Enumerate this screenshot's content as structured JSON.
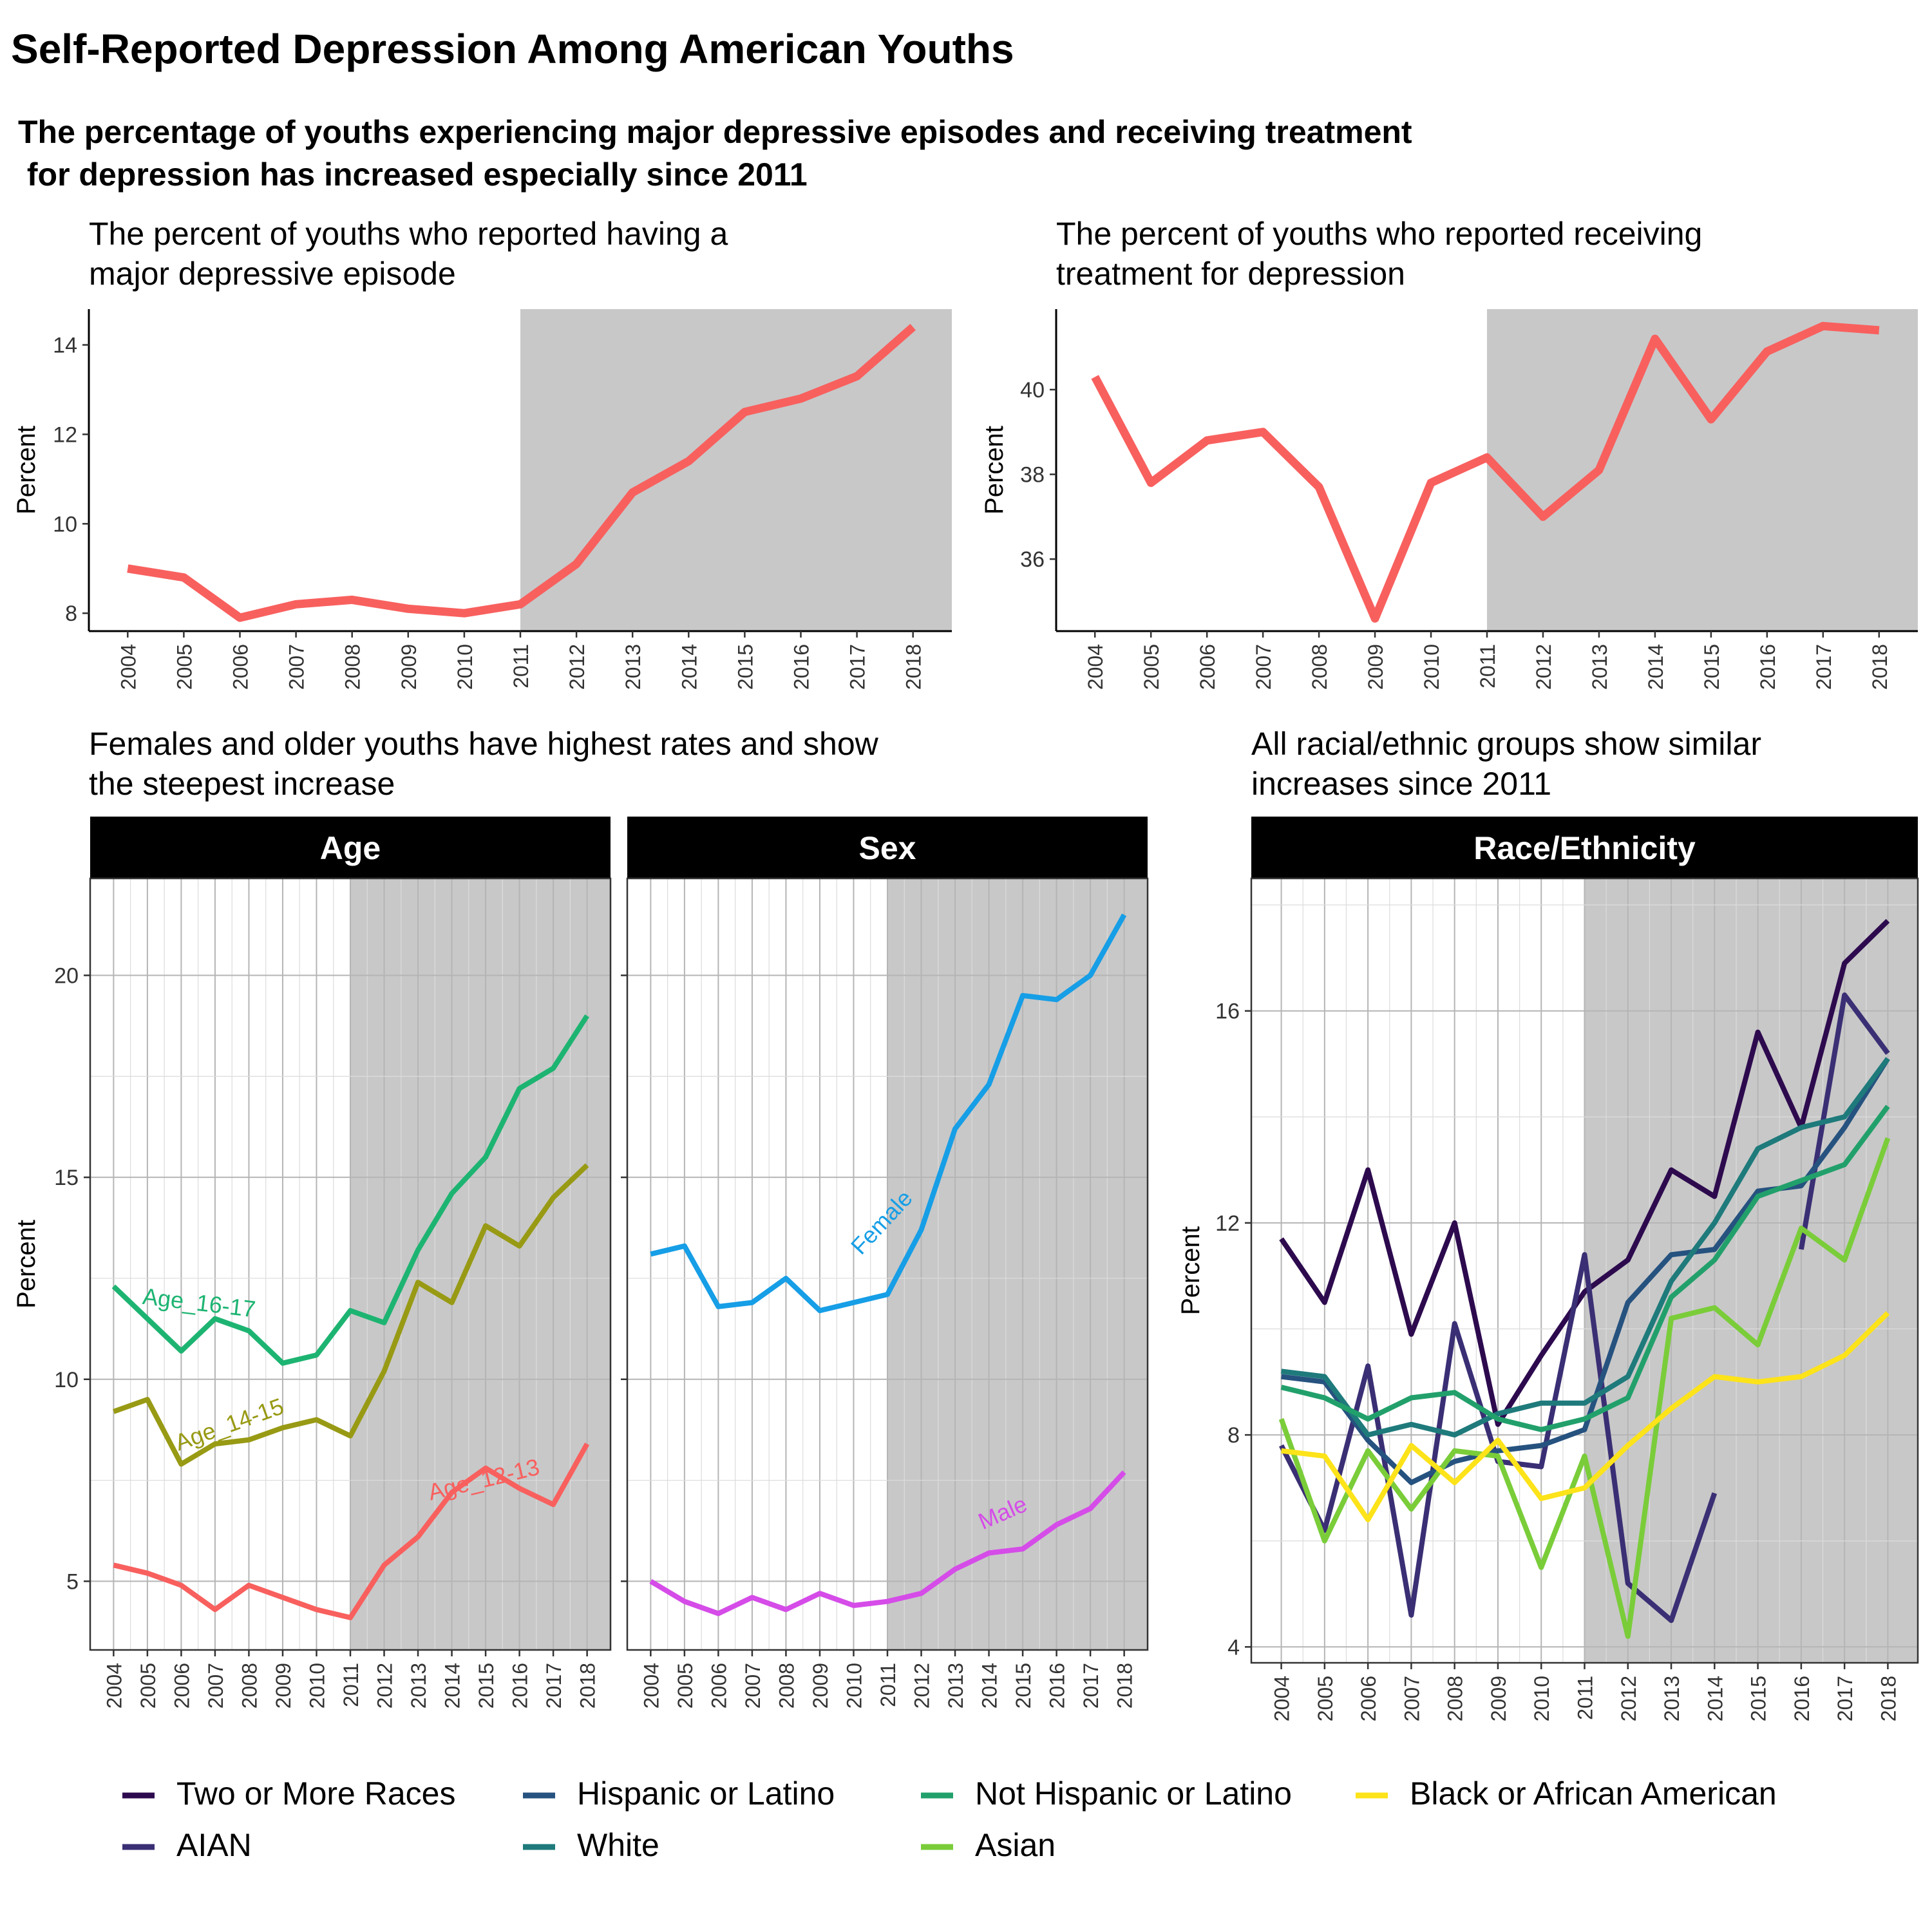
{
  "title": "Self-Reported Depression Among American Youths",
  "subtitle_lines": [
    "The percentage of youths experiencing major depressive episodes and receiving treatment",
    " for depression has increased especially since 2011"
  ],
  "colors": {
    "line_main": "#F8605E",
    "shade": "#C8C8C8",
    "age_12_13": "#F8605E",
    "age_14_15": "#989A14",
    "age_16_17": "#1DB472",
    "female": "#169EE6",
    "male": "#D54CE8"
  },
  "chart_data": [
    {
      "id": "mde",
      "type": "line",
      "title_lines": [
        "The percent of youths who reported having a",
        "major depressive episode"
      ],
      "ylabel": "Percent",
      "xlabel": "",
      "x": [
        2004,
        2005,
        2006,
        2007,
        2008,
        2009,
        2010,
        2011,
        2012,
        2013,
        2014,
        2015,
        2016,
        2017,
        2018
      ],
      "series": [
        {
          "values": [
            9.0,
            8.8,
            7.9,
            8.2,
            8.3,
            8.1,
            8.0,
            8.2,
            9.1,
            10.7,
            11.4,
            12.5,
            12.8,
            13.3,
            14.4
          ]
        }
      ],
      "ylim": [
        7.6,
        14.8
      ],
      "yticks": [
        8,
        10,
        12,
        14
      ],
      "shade_from": 2011,
      "grid": false
    },
    {
      "id": "treatment",
      "type": "line",
      "title_lines": [
        "The percent of youths who reported receiving",
        "treatment for depression"
      ],
      "ylabel": "Percent",
      "xlabel": "",
      "x": [
        2004,
        2005,
        2006,
        2007,
        2008,
        2009,
        2010,
        2011,
        2012,
        2013,
        2014,
        2015,
        2016,
        2017,
        2018
      ],
      "series": [
        {
          "values": [
            40.3,
            37.8,
            38.8,
            39.0,
            37.7,
            34.6,
            37.8,
            38.4,
            37.0,
            38.1,
            41.2,
            39.3,
            40.9,
            41.5,
            41.4
          ]
        }
      ],
      "ylim": [
        34.3,
        41.9
      ],
      "yticks": [
        36,
        38,
        40
      ],
      "shade_from": 2011,
      "grid": false
    },
    {
      "id": "age",
      "type": "line",
      "panel_title_lines": [
        "Females and older youths have highest rates and show",
        "the steepest increase"
      ],
      "strip": "Age",
      "ylabel": "Percent",
      "xlabel": "",
      "x": [
        2004,
        2005,
        2006,
        2007,
        2008,
        2009,
        2010,
        2011,
        2012,
        2013,
        2014,
        2015,
        2016,
        2017,
        2018
      ],
      "series": [
        {
          "label": "Age_12-13",
          "values": [
            5.4,
            5.2,
            4.9,
            4.3,
            4.9,
            4.6,
            4.3,
            4.1,
            5.4,
            6.1,
            7.2,
            7.8,
            7.3,
            6.9,
            8.4
          ]
        },
        {
          "label": "Age_14-15",
          "values": [
            9.2,
            9.5,
            7.9,
            8.4,
            8.5,
            8.8,
            9.0,
            8.6,
            10.2,
            12.4,
            11.9,
            13.8,
            13.3,
            14.5,
            15.3
          ]
        },
        {
          "label": "Age_16-17",
          "values": [
            12.3,
            11.5,
            10.7,
            11.5,
            11.2,
            10.4,
            10.6,
            11.7,
            11.4,
            13.2,
            14.6,
            15.5,
            17.2,
            17.7,
            19.0
          ]
        }
      ],
      "ylim": [
        3.3,
        22.4
      ],
      "yticks": [
        5,
        10,
        15,
        20
      ],
      "shade_from": 2011,
      "grid": true
    },
    {
      "id": "sex",
      "type": "line",
      "strip": "Sex",
      "xlabel": "",
      "x": [
        2004,
        2005,
        2006,
        2007,
        2008,
        2009,
        2010,
        2011,
        2012,
        2013,
        2014,
        2015,
        2016,
        2017,
        2018
      ],
      "series": [
        {
          "label": "Female",
          "values": [
            13.1,
            13.3,
            11.8,
            11.9,
            12.5,
            11.7,
            11.9,
            12.1,
            13.7,
            16.2,
            17.3,
            19.5,
            19.4,
            20.0,
            21.5
          ]
        },
        {
          "label": "Male",
          "values": [
            5.0,
            4.5,
            4.2,
            4.6,
            4.3,
            4.7,
            4.4,
            4.5,
            4.7,
            5.3,
            5.7,
            5.8,
            6.4,
            6.8,
            7.7
          ]
        }
      ],
      "ylim": [
        3.3,
        22.4
      ],
      "yticks": [
        5,
        10,
        15,
        20
      ],
      "shade_from": 2011,
      "grid": true
    },
    {
      "id": "race",
      "type": "line",
      "panel_title_lines": [
        "All racial/ethnic groups show similar",
        "increases since 2011"
      ],
      "strip": "Race/Ethnicity",
      "ylabel": "Percent",
      "xlabel": "",
      "x": [
        2004,
        2005,
        2006,
        2007,
        2008,
        2009,
        2010,
        2011,
        2012,
        2013,
        2014,
        2015,
        2016,
        2017,
        2018
      ],
      "series": [
        {
          "name": "Two or More Races",
          "color": "#2D0A4E",
          "values": [
            11.7,
            10.5,
            13.0,
            9.9,
            12.0,
            8.2,
            9.5,
            10.7,
            11.3,
            13.0,
            12.5,
            15.6,
            13.8,
            16.9,
            17.7
          ]
        },
        {
          "name": "AIAN",
          "color": "#3A2F74",
          "values": [
            7.8,
            6.2,
            9.3,
            4.6,
            10.1,
            7.5,
            7.4,
            11.4,
            5.2,
            4.5,
            6.9,
            null,
            11.5,
            16.3,
            15.2
          ]
        },
        {
          "name": "Hispanic or Latino",
          "color": "#26527F",
          "values": [
            9.1,
            9.0,
            7.9,
            7.1,
            7.5,
            7.7,
            7.8,
            8.1,
            10.5,
            11.4,
            11.5,
            12.6,
            12.7,
            13.8,
            15.1
          ]
        },
        {
          "name": "White",
          "color": "#1E7A7B",
          "values": [
            9.2,
            9.1,
            8.0,
            8.2,
            8.0,
            8.4,
            8.6,
            8.6,
            9.1,
            10.9,
            12.0,
            13.4,
            13.8,
            14.0,
            15.1
          ]
        },
        {
          "name": "Not Hispanic or Latino",
          "color": "#22A06B",
          "values": [
            8.9,
            8.7,
            8.3,
            8.7,
            8.8,
            8.3,
            8.1,
            8.3,
            8.7,
            10.6,
            11.3,
            12.5,
            12.8,
            13.1,
            14.2
          ]
        },
        {
          "name": "Asian",
          "color": "#7ACD39",
          "values": [
            8.3,
            6.0,
            7.7,
            6.6,
            7.7,
            7.6,
            5.5,
            7.6,
            4.2,
            10.2,
            10.4,
            9.7,
            11.9,
            11.3,
            13.6
          ]
        },
        {
          "name": "Black or African American",
          "color": "#FDE319",
          "values": [
            7.7,
            7.6,
            6.4,
            7.8,
            7.1,
            7.9,
            6.8,
            7.0,
            7.8,
            8.5,
            9.1,
            9.0,
            9.1,
            9.5,
            10.3
          ]
        }
      ],
      "ylim": [
        3.7,
        18.5
      ],
      "yticks": [
        4,
        8,
        12,
        16
      ],
      "shade_from": 2011,
      "grid": true
    }
  ]
}
